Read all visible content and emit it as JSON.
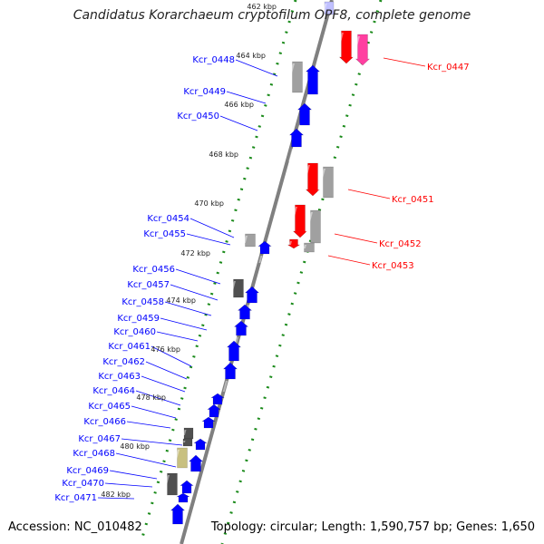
{
  "title": "Candidatus Korarchaeum cryptofilum OPF8, complete genome",
  "accession": "Accession: NC_010482",
  "summary": "Topology: circular; Length: 1,590,757 bp; Genes: 1,650",
  "colors": {
    "forward": "#0000ff",
    "reverse": "#ff0000",
    "grey": "#a0a0a0",
    "dark": "#505050",
    "olive": "#c8c080",
    "pink": "#ff3fa0",
    "backbone": "#808080",
    "ruler": "#1a8a1a"
  },
  "ruler_labels": [
    "462 kbp",
    "464 kbp",
    "466 kbp",
    "468 kbp",
    "470 kbp",
    "472 kbp",
    "474 kbp",
    "476 kbp",
    "478 kbp",
    "480 kbp",
    "482 kbp"
  ],
  "left_labels": [
    "Kcr_0448",
    "Kcr_0449",
    "Kcr_0450",
    "Kcr_0454",
    "Kcr_0455",
    "Kcr_0456",
    "Kcr_0457",
    "Kcr_0458",
    "Kcr_0459",
    "Kcr_0460",
    "Kcr_0461",
    "Kcr_0462",
    "Kcr_0463",
    "Kcr_0464",
    "Kcr_0465",
    "Kcr_0466",
    "Kcr_0467",
    "Kcr_0468",
    "Kcr_0469",
    "Kcr_0470",
    "Kcr_0471"
  ],
  "right_labels": [
    "Kcr_0447",
    "Kcr_0451",
    "Kcr_0452",
    "Kcr_0453"
  ]
}
